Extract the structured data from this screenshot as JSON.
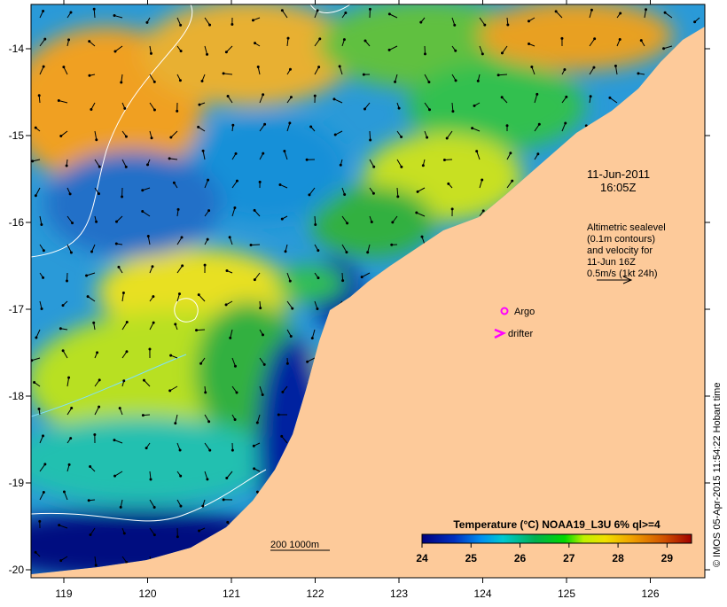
{
  "map": {
    "date_line1": "11-Jun-2011",
    "date_line2": "16:05Z",
    "altimetry_note": [
      "Altimetric sealevel",
      "(0.1m contours)",
      "and velocity for",
      "11-Jun 16Z",
      "0.5m/s (1kt 24h)"
    ],
    "argo_label": "Argo",
    "drifter_label": "drifter",
    "scale_label": "200  1000m",
    "copyright": "© IMOS 05-Apr-2015 11:54:22 Hobart time",
    "lon_ticks": [
      "119",
      "120",
      "121",
      "122",
      "123",
      "124",
      "125",
      "126"
    ],
    "lat_ticks": [
      "-14",
      "-15",
      "-16",
      "-17",
      "-18",
      "-19",
      "-20"
    ],
    "colors": {
      "land": "#fdca9a",
      "argo": "#ff00ff",
      "drifter": "#ff00ff"
    }
  },
  "legend": {
    "title": "Temperature (°C) NOAA19_L3U 6% ql>=4",
    "ticks": [
      "24",
      "25",
      "26",
      "27",
      "28",
      "29"
    ],
    "range": [
      24,
      29.5
    ]
  }
}
